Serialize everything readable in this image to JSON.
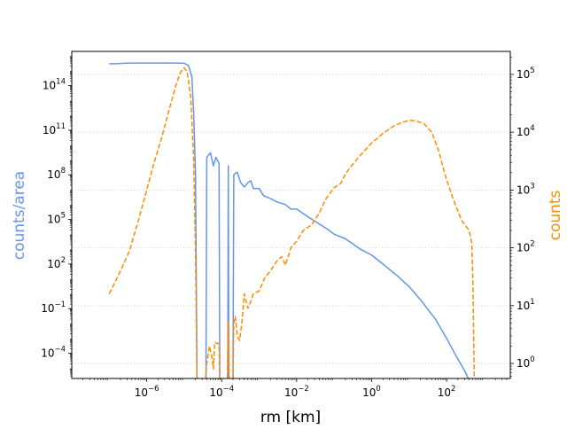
{
  "chart_data": {
    "type": "line",
    "title": "",
    "xlabel": "rm [km]",
    "ylabel_left": "counts/area",
    "ylabel_right": "counts",
    "xscale": "log",
    "yscale_left": "log",
    "yscale_right": "log",
    "xlim": [
      1e-08,
      5000
    ],
    "ylim_left": [
      2e-06,
      2e+16
    ],
    "ylim_right": [
      0.55,
      250000
    ],
    "grid": "horizontal dotted (right axis major ticks)",
    "colors": {
      "left": "#6495ED",
      "right": "#FF8C00"
    },
    "x_ticks": [
      {
        "value": 1e-06,
        "base": "10",
        "exp": "−6"
      },
      {
        "value": 0.0001,
        "base": "10",
        "exp": "−4"
      },
      {
        "value": 0.01,
        "base": "10",
        "exp": "−2"
      },
      {
        "value": 1,
        "base": "10",
        "exp": "0"
      },
      {
        "value": 100,
        "base": "10",
        "exp": "2"
      }
    ],
    "y_left_ticks": [
      {
        "value": 0.0001,
        "base": "10",
        "exp": "−4"
      },
      {
        "value": 0.1,
        "base": "10",
        "exp": "−1"
      },
      {
        "value": 100.0,
        "base": "10",
        "exp": "2"
      },
      {
        "value": 100000.0,
        "base": "10",
        "exp": "5"
      },
      {
        "value": 100000000.0,
        "base": "10",
        "exp": "8"
      },
      {
        "value": 100000000000.0,
        "base": "10",
        "exp": "11"
      },
      {
        "value": 100000000000000.0,
        "base": "10",
        "exp": "14"
      }
    ],
    "y_right_ticks": [
      {
        "value": 1,
        "base": "10",
        "exp": "0"
      },
      {
        "value": 10,
        "base": "10",
        "exp": "1"
      },
      {
        "value": 100,
        "base": "10",
        "exp": "2"
      },
      {
        "value": 1000,
        "base": "10",
        "exp": "3"
      },
      {
        "value": 10000,
        "base": "10",
        "exp": "4"
      },
      {
        "value": 100000,
        "base": "10",
        "exp": "5"
      }
    ],
    "series": [
      {
        "axis": "left",
        "style": "solid",
        "color": "#6495ED",
        "points": [
          [
            1e-07,
            3000000000000000.0
          ],
          [
            1.6e-07,
            3000000000000000.0
          ],
          [
            2.5e-07,
            3200000000000000.0
          ],
          [
            4e-07,
            3300000000000000.0
          ],
          [
            6.3e-07,
            3300000000000000.0
          ],
          [
            1e-06,
            3300000000000000.0
          ],
          [
            1.6e-06,
            3300000000000000.0
          ],
          [
            2.5e-06,
            3300000000000000.0
          ],
          [
            4e-06,
            3300000000000000.0
          ],
          [
            6.3e-06,
            3300000000000000.0
          ],
          [
            1e-05,
            3200000000000000.0
          ],
          [
            1.3e-05,
            2200000000000000.0
          ],
          [
            1.6e-05,
            400000000000000.0
          ],
          [
            1.8e-05,
            1000000000000.0
          ],
          [
            2e-05,
            100000000.0
          ],
          [
            2.2e-05,
            1e-06
          ],
          [
            3.8e-05,
            1e-06
          ],
          [
            4e-05,
            1500000000.0
          ],
          [
            5e-05,
            3000000000.0
          ],
          [
            6e-05,
            400000000.0
          ],
          [
            7e-05,
            1500000000.0
          ],
          [
            8.5e-05,
            600000000.0
          ],
          [
            8.9e-05,
            1e-06
          ],
          [
            0.000145,
            1e-06
          ],
          [
            0.00015,
            400000000.0
          ],
          [
            0.000155,
            1e-06
          ],
          [
            0.0002,
            1e-06
          ],
          [
            0.00021,
            100000000.0
          ],
          [
            0.00026,
            150000000.0
          ],
          [
            0.00032,
            30000000.0
          ],
          [
            0.0004,
            15000000.0
          ],
          [
            0.0005,
            30000000.0
          ],
          [
            0.0006,
            40000000.0
          ],
          [
            0.0007,
            12000000.0
          ],
          [
            0.001,
            12000000.0
          ],
          [
            0.0013,
            4000000.0
          ],
          [
            0.002,
            2500000.0
          ],
          [
            0.003,
            1500000.0
          ],
          [
            0.005,
            1000000.0
          ],
          [
            0.007,
            500000.0
          ],
          [
            0.01,
            500000.0
          ],
          [
            0.02,
            150000.0
          ],
          [
            0.04,
            50000.0
          ],
          [
            0.07,
            20000.0
          ],
          [
            0.1,
            10000.0
          ],
          [
            0.2,
            5000.0
          ],
          [
            0.5,
            1000.0
          ],
          [
            1.0,
            400
          ],
          [
            2.0,
            100
          ],
          [
            5.0,
            15
          ],
          [
            10.0,
            3
          ],
          [
            20.0,
            0.4
          ],
          [
            50.0,
            0.02
          ],
          [
            100.0,
            0.001
          ],
          [
            200.0,
            4e-05
          ],
          [
            300.0,
            7e-06
          ],
          [
            400.0,
            1.5e-06
          ],
          [
            550.0,
            1e-08
          ]
        ]
      },
      {
        "axis": "right",
        "style": "dashed",
        "color": "#FF8C00",
        "points": [
          [
            1e-07,
            16
          ],
          [
            2e-07,
            40
          ],
          [
            3.5e-07,
            90
          ],
          [
            6e-07,
            300
          ],
          [
            1e-06,
            1000
          ],
          [
            1.5e-06,
            2700
          ],
          [
            2.5e-06,
            8000
          ],
          [
            4e-06,
            25000
          ],
          [
            6e-06,
            65000
          ],
          [
            8e-06,
            110000
          ],
          [
            1e-05,
            130000
          ],
          [
            1.2e-05,
            110000
          ],
          [
            1.5e-05,
            40000
          ],
          [
            1.8e-05,
            3000
          ],
          [
            2e-05,
            80
          ],
          [
            2.2e-05,
            0.4
          ],
          [
            3.6e-05,
            0.4
          ],
          [
            4e-05,
            1.0
          ],
          [
            4.7e-05,
            2.0
          ],
          [
            5.5e-05,
            1.3
          ],
          [
            6e-05,
            0.8
          ],
          [
            6.5e-05,
            2.3
          ],
          [
            8.5e-05,
            2.2
          ],
          [
            8.9e-05,
            0.4
          ],
          [
            0.00014,
            0.4
          ],
          [
            0.00015,
            5.5
          ],
          [
            0.00016,
            0.4
          ],
          [
            0.0002,
            0.4
          ],
          [
            0.00021,
            5.0
          ],
          [
            0.00023,
            6.5
          ],
          [
            0.00026,
            3.0
          ],
          [
            0.0003,
            2.5
          ],
          [
            0.00035,
            5.5
          ],
          [
            0.0004,
            16
          ],
          [
            0.0005,
            9
          ],
          [
            0.0006,
            12
          ],
          [
            0.0007,
            16
          ],
          [
            0.001,
            18
          ],
          [
            0.0014,
            30
          ],
          [
            0.002,
            40
          ],
          [
            0.003,
            60
          ],
          [
            0.004,
            70
          ],
          [
            0.005,
            50
          ],
          [
            0.007,
            100
          ],
          [
            0.01,
            130
          ],
          [
            0.015,
            200
          ],
          [
            0.025,
            250
          ],
          [
            0.04,
            400
          ],
          [
            0.06,
            700
          ],
          [
            0.1,
            1100
          ],
          [
            0.15,
            1300
          ],
          [
            0.2,
            1900
          ],
          [
            0.3,
            2700
          ],
          [
            0.5,
            4000
          ],
          [
            1.0,
            6500
          ],
          [
            2.0,
            9500
          ],
          [
            4.0,
            13000
          ],
          [
            7.0,
            15000
          ],
          [
            10.0,
            16000
          ],
          [
            15.0,
            15800
          ],
          [
            25.0,
            14000
          ],
          [
            40.0,
            10000
          ],
          [
            60.0,
            5000
          ],
          [
            80.0,
            2500
          ],
          [
            100.0,
            1500
          ],
          [
            150.0,
            700
          ],
          [
            250.0,
            300
          ],
          [
            400.0,
            200
          ],
          [
            470.0,
            120
          ],
          [
            500.0,
            30
          ],
          [
            520.0,
            5
          ],
          [
            550.0,
            0.4
          ]
        ]
      }
    ]
  }
}
